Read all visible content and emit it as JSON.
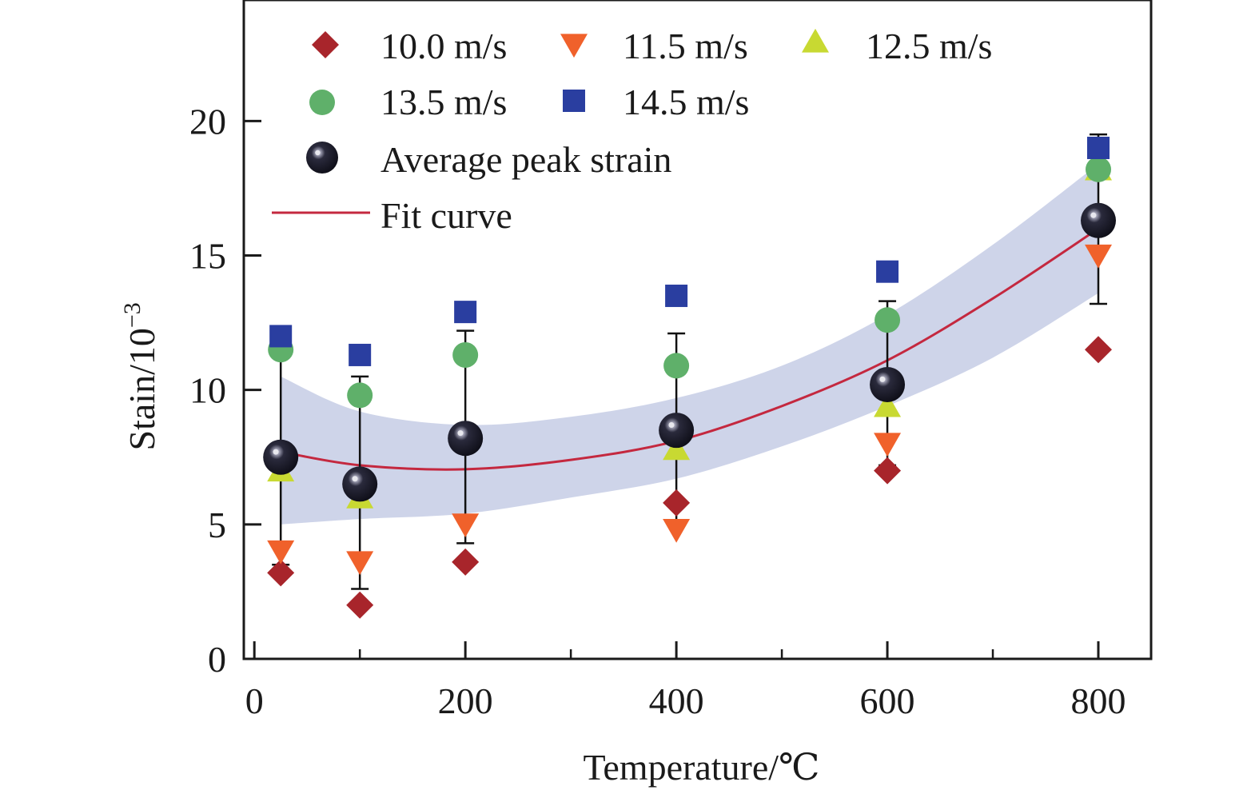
{
  "chart_data": {
    "type": "scatter",
    "xlabel": "Temperature/℃",
    "ylabel": "Stain/10",
    "ylabel_superscript": "−3",
    "xlim": [
      -10,
      850
    ],
    "ylim": [
      0,
      24.5
    ],
    "xticks": [
      0,
      200,
      400,
      600,
      800
    ],
    "yticks": [
      0,
      5,
      10,
      15,
      20
    ],
    "x_minor_ticks": [
      100,
      300,
      500,
      700
    ],
    "x": [
      25,
      100,
      200,
      400,
      600,
      800
    ],
    "series": [
      {
        "name": "10.0 m/s",
        "marker": "diamond",
        "color": "#a8252b",
        "values": [
          3.2,
          2.0,
          3.6,
          5.8,
          7.0,
          11.5
        ]
      },
      {
        "name": "11.5 m/s",
        "marker": "triangle-down",
        "color": "#f0612b",
        "values": [
          4.0,
          3.6,
          5.0,
          4.8,
          8.0,
          15.0
        ]
      },
      {
        "name": "12.5 m/s",
        "marker": "triangle-up",
        "color": "#c8d932",
        "values": [
          7.0,
          6.0,
          8.3,
          7.8,
          9.4,
          18.2
        ]
      },
      {
        "name": "13.5 m/s",
        "marker": "circle",
        "color": "#5fb06a",
        "values": [
          11.5,
          9.8,
          11.3,
          10.9,
          12.6,
          18.2
        ]
      },
      {
        "name": "14.5 m/s",
        "marker": "square",
        "color": "#2a3ea0",
        "values": [
          12.0,
          11.3,
          12.9,
          13.5,
          14.4,
          19.0
        ]
      }
    ],
    "average": {
      "name": "Average peak strain",
      "marker": "sphere",
      "color": "#0d0d16",
      "values": [
        7.5,
        6.5,
        8.2,
        8.5,
        10.2,
        16.3
      ],
      "error_low": [
        3.5,
        2.6,
        4.3,
        5.0,
        7.2,
        13.2
      ],
      "error_high": [
        11.6,
        10.5,
        12.2,
        12.1,
        13.3,
        19.5
      ]
    },
    "fit": {
      "name": "Fit curve",
      "color": "#c4283f",
      "x": [
        25,
        100,
        200,
        300,
        400,
        500,
        600,
        700,
        800
      ],
      "y": [
        7.7,
        7.2,
        7.05,
        7.4,
        8.1,
        9.4,
        11.1,
        13.4,
        16.0
      ]
    },
    "confidence_band": {
      "color": "#c5cce5",
      "x": [
        25,
        100,
        200,
        300,
        400,
        500,
        600,
        700,
        800
      ],
      "lower": [
        5.0,
        5.2,
        5.4,
        6.0,
        6.7,
        7.9,
        9.4,
        11.2,
        13.6
      ],
      "upper": [
        10.5,
        9.2,
        8.7,
        9.0,
        9.7,
        10.9,
        12.8,
        15.4,
        18.4
      ]
    },
    "legend_placement": "top-left",
    "grid": false
  }
}
